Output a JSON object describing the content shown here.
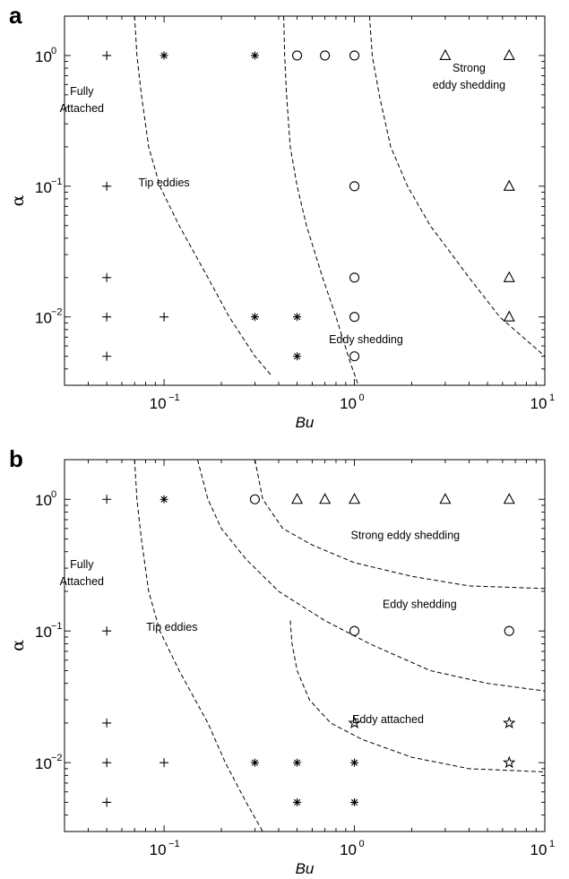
{
  "chart_data": [
    {
      "panel": "a",
      "type": "scatter",
      "title": "",
      "xlabel": "Bu",
      "ylabel": "α",
      "xscale": "log",
      "yscale": "log",
      "xlim": [
        0.03,
        10
      ],
      "ylim": [
        0.003,
        2
      ],
      "xticks": [
        {
          "base": "10",
          "exp": "−1"
        },
        {
          "base": "10",
          "exp": "0"
        },
        {
          "base": "10",
          "exp": "1"
        }
      ],
      "yticks": [
        {
          "base": "10",
          "exp": "−2"
        },
        {
          "base": "10",
          "exp": "−1"
        },
        {
          "base": "10",
          "exp": "0"
        }
      ],
      "xtick_values": [
        0.1,
        1,
        10
      ],
      "ytick_values": [
        0.01,
        0.1,
        1
      ],
      "grid": false,
      "regions": [
        {
          "lines": [
            "Fully",
            "Attached"
          ],
          "x": 0.037,
          "y": 0.5
        },
        {
          "lines": [
            "Tip eddies"
          ],
          "x": 0.1,
          "y": 0.1
        },
        {
          "lines": [
            "Strong",
            "eddy shedding"
          ],
          "x": 4.0,
          "y": 0.75
        },
        {
          "lines": [
            "Eddy shedding"
          ],
          "x": 1.15,
          "y": 0.0063
        }
      ],
      "series": [
        {
          "marker": "plus",
          "points": [
            [
              0.05,
              1
            ],
            [
              0.05,
              0.1
            ],
            [
              0.05,
              0.02
            ],
            [
              0.05,
              0.01
            ],
            [
              0.05,
              0.005
            ],
            [
              0.1,
              0.01
            ]
          ]
        },
        {
          "marker": "asterisk",
          "points": [
            [
              0.1,
              1
            ],
            [
              0.3,
              1
            ],
            [
              0.3,
              0.01
            ],
            [
              0.5,
              0.01
            ],
            [
              0.5,
              0.005
            ]
          ]
        },
        {
          "marker": "circle",
          "points": [
            [
              0.5,
              1
            ],
            [
              0.7,
              1
            ],
            [
              1,
              1
            ],
            [
              1,
              0.1
            ],
            [
              1,
              0.02
            ],
            [
              1,
              0.01
            ],
            [
              1,
              0.005
            ]
          ]
        },
        {
          "marker": "triangle",
          "points": [
            [
              3,
              1
            ],
            [
              6.5,
              1
            ],
            [
              6.5,
              0.1
            ],
            [
              6.5,
              0.02
            ],
            [
              6.5,
              0.01
            ]
          ]
        }
      ],
      "boundaries": [
        [
          [
            0.07,
            2
          ],
          [
            0.072,
            1
          ],
          [
            0.076,
            0.5
          ],
          [
            0.083,
            0.2
          ],
          [
            0.095,
            0.1
          ],
          [
            0.12,
            0.05
          ],
          [
            0.17,
            0.02
          ],
          [
            0.22,
            0.01
          ],
          [
            0.3,
            0.005
          ],
          [
            0.37,
            0.0035
          ]
        ],
        [
          [
            0.425,
            2
          ],
          [
            0.43,
            1
          ],
          [
            0.44,
            0.5
          ],
          [
            0.46,
            0.2
          ],
          [
            0.5,
            0.1
          ],
          [
            0.56,
            0.05
          ],
          [
            0.68,
            0.02
          ],
          [
            0.8,
            0.01
          ],
          [
            0.95,
            0.0045
          ],
          [
            1.05,
            0.003
          ]
        ],
        [
          [
            1.2,
            2
          ],
          [
            1.24,
            1
          ],
          [
            1.35,
            0.5
          ],
          [
            1.55,
            0.2
          ],
          [
            1.9,
            0.1
          ],
          [
            2.5,
            0.05
          ],
          [
            4.0,
            0.02
          ],
          [
            5.8,
            0.01
          ],
          [
            10,
            0.005
          ]
        ]
      ]
    },
    {
      "panel": "b",
      "type": "scatter",
      "title": "",
      "xlabel": "Bu",
      "ylabel": "α",
      "xscale": "log",
      "yscale": "log",
      "xlim": [
        0.03,
        10
      ],
      "ylim": [
        0.003,
        2
      ],
      "xticks": [
        {
          "base": "10",
          "exp": "−1"
        },
        {
          "base": "10",
          "exp": "0"
        },
        {
          "base": "10",
          "exp": "1"
        }
      ],
      "yticks": [
        {
          "base": "10",
          "exp": "−2"
        },
        {
          "base": "10",
          "exp": "−1"
        },
        {
          "base": "10",
          "exp": "0"
        }
      ],
      "xtick_values": [
        0.1,
        1,
        10
      ],
      "ytick_values": [
        0.01,
        0.1,
        1
      ],
      "grid": false,
      "regions": [
        {
          "lines": [
            "Fully",
            "Attached"
          ],
          "x": 0.037,
          "y": 0.3
        },
        {
          "lines": [
            "Tip eddies"
          ],
          "x": 0.11,
          "y": 0.1
        },
        {
          "lines": [
            "Strong eddy shedding"
          ],
          "x": 1.85,
          "y": 0.5
        },
        {
          "lines": [
            "Eddy shedding"
          ],
          "x": 2.2,
          "y": 0.15
        },
        {
          "lines": [
            "Eddy attached"
          ],
          "x": 1.5,
          "y": 0.02
        }
      ],
      "series": [
        {
          "marker": "plus",
          "points": [
            [
              0.05,
              1
            ],
            [
              0.05,
              0.1
            ],
            [
              0.05,
              0.02
            ],
            [
              0.05,
              0.01
            ],
            [
              0.05,
              0.005
            ],
            [
              0.1,
              0.01
            ]
          ]
        },
        {
          "marker": "asterisk",
          "points": [
            [
              0.1,
              1
            ],
            [
              0.3,
              0.01
            ],
            [
              0.5,
              0.01
            ],
            [
              1,
              0.01
            ],
            [
              0.5,
              0.005
            ],
            [
              1,
              0.005
            ]
          ]
        },
        {
          "marker": "circle",
          "points": [
            [
              0.3,
              1
            ],
            [
              1,
              0.1
            ],
            [
              6.5,
              0.1
            ]
          ]
        },
        {
          "marker": "triangle",
          "points": [
            [
              0.5,
              1
            ],
            [
              0.7,
              1
            ],
            [
              1,
              1
            ],
            [
              3,
              1
            ],
            [
              6.5,
              1
            ]
          ]
        },
        {
          "marker": "pentagram",
          "points": [
            [
              1,
              0.02
            ],
            [
              6.5,
              0.02
            ],
            [
              6.5,
              0.01
            ]
          ]
        }
      ],
      "boundaries": [
        [
          [
            0.07,
            2
          ],
          [
            0.072,
            1
          ],
          [
            0.076,
            0.5
          ],
          [
            0.083,
            0.2
          ],
          [
            0.095,
            0.1
          ],
          [
            0.12,
            0.05
          ],
          [
            0.17,
            0.02
          ],
          [
            0.21,
            0.01
          ],
          [
            0.27,
            0.005
          ],
          [
            0.33,
            0.003
          ]
        ],
        [
          [
            0.15,
            2
          ],
          [
            0.17,
            1
          ],
          [
            0.2,
            0.6
          ],
          [
            0.27,
            0.35
          ],
          [
            0.4,
            0.2
          ],
          [
            0.7,
            0.12
          ],
          [
            1.2,
            0.08
          ],
          [
            2.5,
            0.05
          ],
          [
            5,
            0.04
          ],
          [
            10,
            0.035
          ]
        ],
        [
          [
            0.3,
            2
          ],
          [
            0.33,
            1
          ],
          [
            0.42,
            0.6
          ],
          [
            0.6,
            0.45
          ],
          [
            1,
            0.33
          ],
          [
            2,
            0.26
          ],
          [
            4,
            0.22
          ],
          [
            10,
            0.21
          ]
        ],
        [
          [
            0.46,
            0.12
          ],
          [
            0.47,
            0.08
          ],
          [
            0.5,
            0.05
          ],
          [
            0.58,
            0.03
          ],
          [
            0.75,
            0.02
          ],
          [
            1.1,
            0.015
          ],
          [
            2,
            0.011
          ],
          [
            4,
            0.009
          ],
          [
            10,
            0.0085
          ]
        ]
      ]
    }
  ]
}
